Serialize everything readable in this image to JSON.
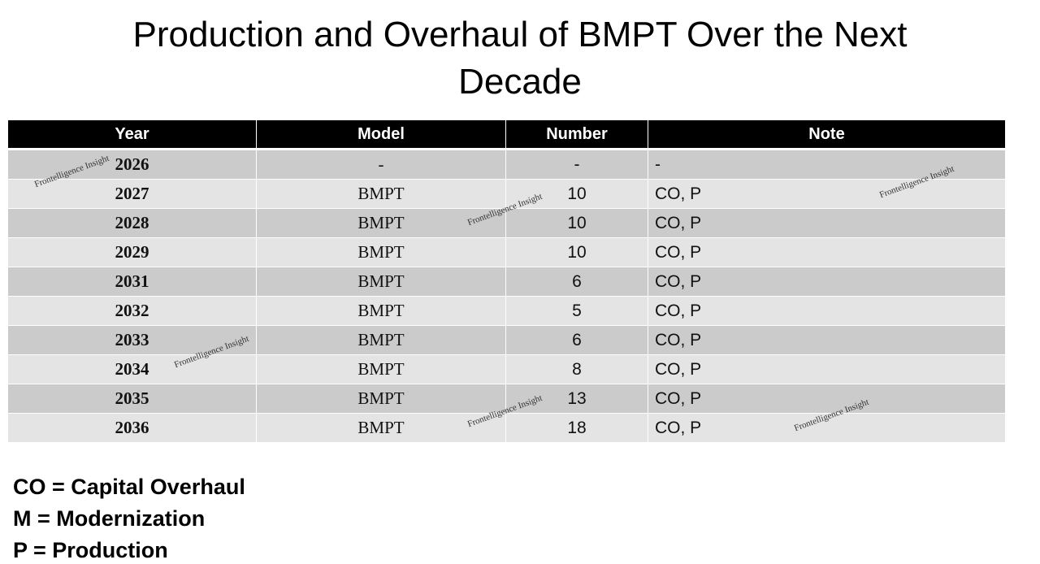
{
  "header": {
    "title": "Production and Overhaul of BMPT Over the Next Decade"
  },
  "table": {
    "columns": [
      "Year",
      "Model",
      "Number",
      "Note"
    ],
    "rows": [
      [
        2026,
        "-",
        "-",
        "-"
      ],
      [
        2027,
        "BMPT",
        10,
        "CO, P"
      ],
      [
        2028,
        "BMPT",
        10,
        "CO, P"
      ],
      [
        2029,
        "BMPT",
        10,
        "CO, P"
      ],
      [
        2031,
        "BMPT",
        6,
        "CO, P"
      ],
      [
        2032,
        "BMPT",
        5,
        "CO, P"
      ],
      [
        2033,
        "BMPT",
        6,
        "CO, P"
      ],
      [
        2034,
        "BMPT",
        8,
        "CO, P"
      ],
      [
        2035,
        "BMPT",
        13,
        "CO, P"
      ],
      [
        2036,
        "BMPT",
        18,
        "CO, P"
      ]
    ]
  },
  "legend": [
    "CO = Capital Overhaul",
    "M = Modernization",
    "P = Production"
  ],
  "watermarks": [
    "Frontelligence Insight",
    "Frontelligence Insight",
    "Frontelligence Insight",
    "Frontelligence Insight",
    "Frontelligence Insight",
    "Frontelligence Insight"
  ]
}
